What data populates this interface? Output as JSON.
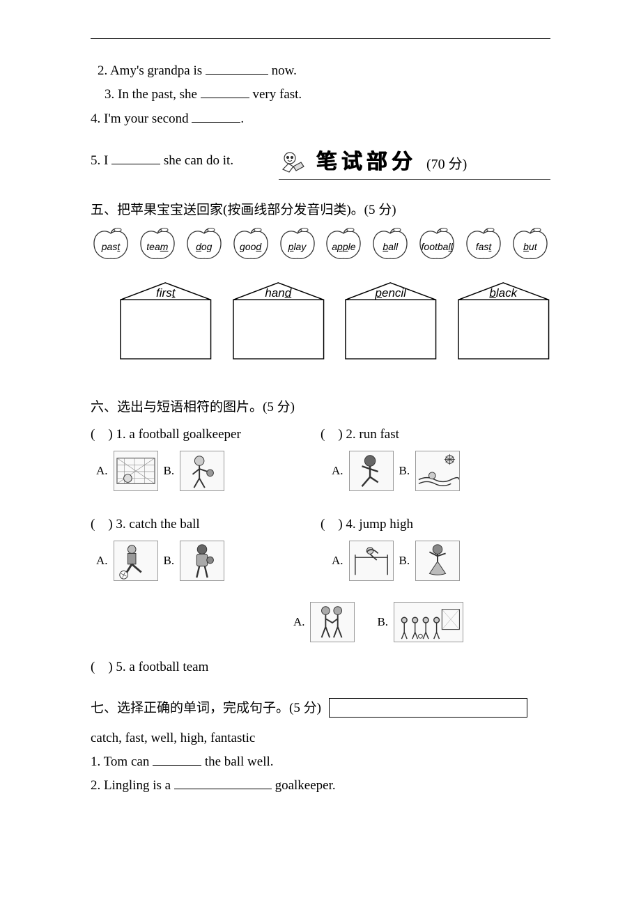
{
  "top_items": {
    "q2": {
      "prefix": "2. Amy's grandpa is ",
      "suffix": " now."
    },
    "q3": {
      "prefix": "3. In the past, she ",
      "suffix": " very fast."
    },
    "q4": {
      "prefix": "4. I'm your second ",
      "suffix": "."
    },
    "q5": {
      "prefix": "5. I ",
      "suffix": " she can do it."
    }
  },
  "banner": {
    "title": "笔试部分",
    "score": "(70 分)"
  },
  "section5": {
    "title": "五、把苹果宝宝送回家(按画线部分发音归类)。(5 分)",
    "apples": [
      {
        "pre": "pas",
        "u": "t",
        "post": ""
      },
      {
        "pre": "tea",
        "u": "m",
        "post": ""
      },
      {
        "pre": "",
        "u": "d",
        "post": "og"
      },
      {
        "pre": "goo",
        "u": "d",
        "post": ""
      },
      {
        "pre": "",
        "u": "p",
        "post": "lay"
      },
      {
        "pre": "a",
        "u": "pp",
        "post": "le"
      },
      {
        "pre": "",
        "u": "b",
        "post": "all"
      },
      {
        "pre": "footba",
        "u": "ll",
        "post": ""
      },
      {
        "pre": "fas",
        "u": "t",
        "post": ""
      },
      {
        "pre": "",
        "u": "b",
        "post": "ut"
      }
    ],
    "houses": [
      {
        "pre": "firs",
        "u": "t",
        "post": ""
      },
      {
        "pre": "han",
        "u": "d",
        "post": ""
      },
      {
        "pre": "",
        "u": "p",
        "post": "encil"
      },
      {
        "pre": "",
        "u": "b",
        "post": "lack"
      }
    ]
  },
  "section6": {
    "title": "六、选出与短语相符的图片。(5 分)",
    "bracket": "(　)",
    "items": {
      "q1": "1. a football goalkeeper",
      "q2": "2. run fast",
      "q3": "3. catch the ball",
      "q4": "4. jump high",
      "q5": "5. a football team"
    },
    "optA": "A.",
    "optB": "B."
  },
  "section7": {
    "title": "七、选择正确的单词，完成句子。(5 分)",
    "word_bank": "catch, fast, well, high, fantastic",
    "q1": {
      "prefix": "1. Tom can ",
      "suffix": " the ball well."
    },
    "q2": {
      "prefix": "2. Lingling is a ",
      "suffix": " goalkeeper."
    }
  },
  "colors": {
    "text": "#000000",
    "rule": "#000000",
    "apple_stroke": "#333333",
    "house_stroke": "#000000",
    "background": "#ffffff"
  }
}
